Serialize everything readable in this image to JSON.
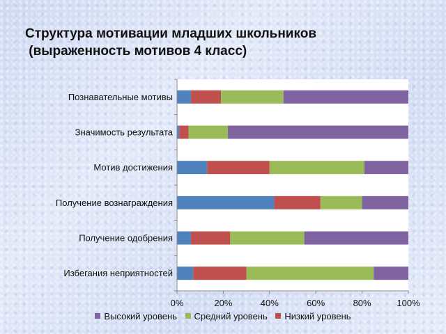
{
  "title_line1": "Структура мотивации младших школьников",
  "title_line2": " (выраженность мотивов 4 класс)",
  "colors": {
    "series1": "#4f81bd",
    "low": "#c0504d",
    "medium": "#9bbb59",
    "high": "#8064a2"
  },
  "chart_data": {
    "type": "bar",
    "orientation": "horizontal",
    "stacked": "percent",
    "categories": [
      "Познавательные мотивы",
      "Значимость результата",
      "Мотив достижения",
      "Получение вознаграждения",
      "Получение одобрения",
      "Избегания неприятностей"
    ],
    "series": [
      {
        "name": "",
        "color": "#4f81bd",
        "values": [
          6,
          1,
          13,
          42,
          6,
          7
        ]
      },
      {
        "name": "Низкий уровень",
        "color": "#c0504d",
        "values": [
          13,
          4,
          27,
          20,
          17,
          23
        ]
      },
      {
        "name": "Средний уровень",
        "color": "#9bbb59",
        "values": [
          27,
          17,
          41,
          18,
          32,
          55
        ]
      },
      {
        "name": "Высокий уровень",
        "color": "#8064a2",
        "values": [
          54,
          78,
          19,
          20,
          45,
          15
        ]
      }
    ],
    "xlim": [
      0,
      100
    ],
    "x_ticks": [
      "0%",
      "20%",
      "40%",
      "60%",
      "80%",
      "100%"
    ],
    "grid": "none",
    "legend_position": "bottom"
  },
  "legend": [
    {
      "label": "Высокий уровень",
      "color": "#8064a2"
    },
    {
      "label": "Средний уровень",
      "color": "#9bbb59"
    },
    {
      "label": "Низкий уровень",
      "color": "#c0504d"
    }
  ]
}
